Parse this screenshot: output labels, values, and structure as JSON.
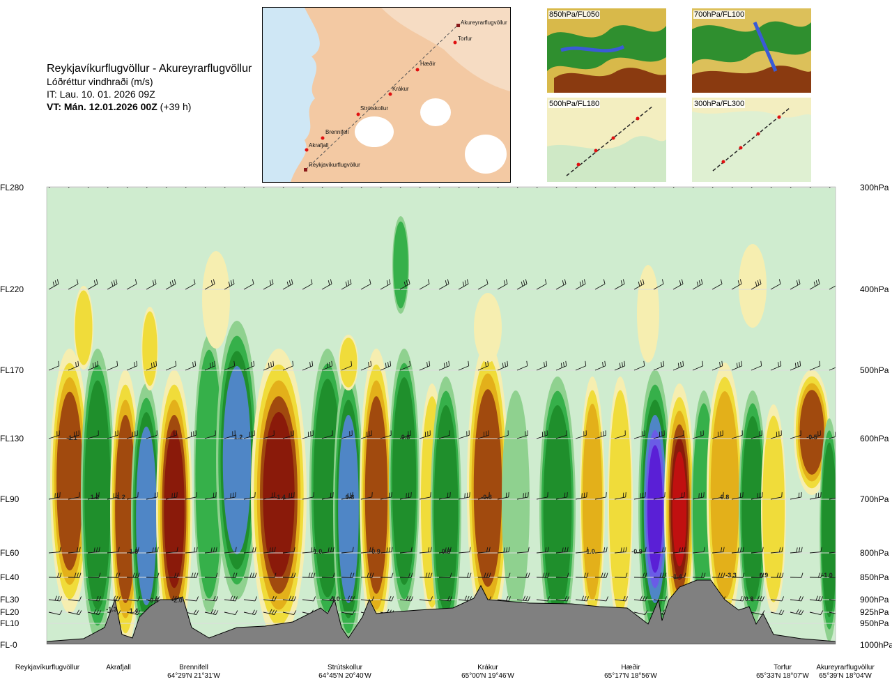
{
  "header": {
    "route": "Reykjavíkurflugvöllur - Akureyrarflugvöllur",
    "variable": "Lóðréttur vindhraði (m/s)",
    "issue_time": "IT: Lau. 10. 01. 2026 09Z",
    "valid_time": "VT: Mán. 12.01.2026 00Z",
    "lead": "(+39 h)"
  },
  "map": {
    "waypoints": [
      "Akureyrarflugvöllur",
      "Torfur",
      "Hæðir",
      "Krákur",
      "Strútskollur",
      "Brennifell",
      "Akrafjall",
      "Reykjavíkurflugvöllur"
    ]
  },
  "thumbnails": [
    {
      "label": "850hPa/FL050"
    },
    {
      "label": "700hPa/FL100"
    },
    {
      "label": "500hPa/FL180"
    },
    {
      "label": "300hPa/FL300"
    }
  ],
  "chart_data": {
    "type": "heatmap",
    "title": "Lóðréttur vindhraði (m/s)",
    "y_levels": [
      {
        "fl": "FL280",
        "hpa": "300hPa"
      },
      {
        "fl": "FL220",
        "hpa": "400hPa"
      },
      {
        "fl": "FL170",
        "hpa": "500hPa"
      },
      {
        "fl": "FL130",
        "hpa": "600hPa"
      },
      {
        "fl": "FL90",
        "hpa": "700hPa"
      },
      {
        "fl": "FL60",
        "hpa": "800hPa"
      },
      {
        "fl": "FL40",
        "hpa": "850hPa"
      },
      {
        "fl": "FL30",
        "hpa": "900hPa"
      },
      {
        "fl": "FL20",
        "hpa": "925hPa"
      },
      {
        "fl": "FL10",
        "hpa": "950hPa"
      },
      {
        "fl": "FL-0",
        "hpa": "1000hPa"
      }
    ],
    "x_locations": [
      {
        "name": "Reykjavíkurflugvöllur",
        "coord": ""
      },
      {
        "name": "Akrafjall",
        "coord": ""
      },
      {
        "name": "Brennifell",
        "coord": "64°29'N 21°31'W"
      },
      {
        "name": "Strútskollur",
        "coord": "64°45'N 20°40'W"
      },
      {
        "name": "Krákur",
        "coord": "65°00'N 19°46'W"
      },
      {
        "name": "Hæðir",
        "coord": "65°17'N 18°56'W"
      },
      {
        "name": "Torfur",
        "coord": "65°33'N 18°07'W"
      },
      {
        "name": "Akureyrarflugvöllur",
        "coord": "65°39'N 18°04'W"
      }
    ],
    "value_labels": [
      "-1.1",
      "1.2",
      "-1.2",
      "1.3",
      "-1.3",
      "1.4",
      "-2.0",
      "1.2",
      "-1.4",
      "0.8",
      "1.0",
      "-0.9",
      "-1.0",
      "0.8",
      "-0.8",
      "0.8",
      "-1.0",
      "-0.9",
      "-1.4",
      "-3.3",
      "0.9",
      "0.8",
      "-1.0",
      "0.8",
      "-0.5",
      "-0.8"
    ],
    "color_scale": [
      "#5a1fd6",
      "#6a5ce6",
      "#4f86c6",
      "#1f8f2c",
      "#36b04a",
      "#8fd18f",
      "#cfeccf",
      "#f6eeb0",
      "#f0dc3a",
      "#e3b01a",
      "#a14a0e",
      "#8a1a0a",
      "#c01010"
    ]
  }
}
